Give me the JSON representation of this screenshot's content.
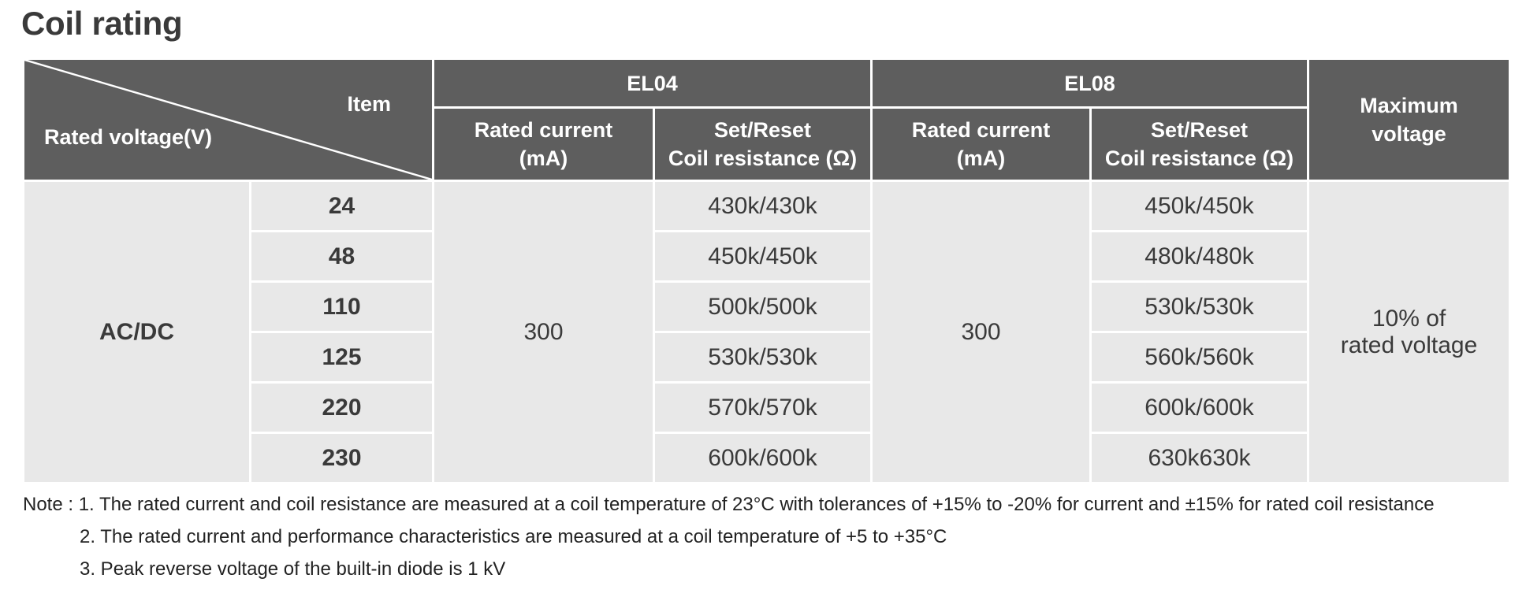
{
  "title": "Coil rating",
  "header": {
    "item": "Item",
    "rated_voltage": "Rated voltage(V)",
    "models": [
      "EL04",
      "EL08"
    ],
    "rated_current_line1": "Rated current",
    "rated_current_line2": "(mA)",
    "coil_resistance_line1": "Set/Reset",
    "coil_resistance_line2": "Coil resistance (Ω)",
    "max_voltage_line1": "Maximum",
    "max_voltage_line2": "voltage"
  },
  "body": {
    "supply": "AC/DC",
    "el04_rated_current": "300",
    "el08_rated_current": "300",
    "max_voltage_line1": "10% of",
    "max_voltage_line2": "rated voltage",
    "rows": [
      {
        "voltage": "24",
        "el04_resistance": "430k/430k",
        "el08_resistance": "450k/450k"
      },
      {
        "voltage": "48",
        "el04_resistance": "450k/450k",
        "el08_resistance": "480k/480k"
      },
      {
        "voltage": "110",
        "el04_resistance": "500k/500k",
        "el08_resistance": "530k/530k"
      },
      {
        "voltage": "125",
        "el04_resistance": "530k/530k",
        "el08_resistance": "560k/560k"
      },
      {
        "voltage": "220",
        "el04_resistance": "570k/570k",
        "el08_resistance": "600k/600k"
      },
      {
        "voltage": "230",
        "el04_resistance": "600k/600k",
        "el08_resistance": "630k630k"
      }
    ]
  },
  "notes": [
    "Note : 1. The rated current and coil resistance are measured at a coil temperature of 23°C with tolerances of +15% to -20% for current and ±15% for rated coil resistance",
    "2. The rated current and performance characteristics are measured at a coil temperature of +5 to +35°C",
    "3. Peak reverse voltage of the built-in diode is 1 kV"
  ],
  "colors": {
    "header_bg": "#5e5e5e",
    "body_bg": "#e8e8e8",
    "grid_line": "#ffffff"
  }
}
